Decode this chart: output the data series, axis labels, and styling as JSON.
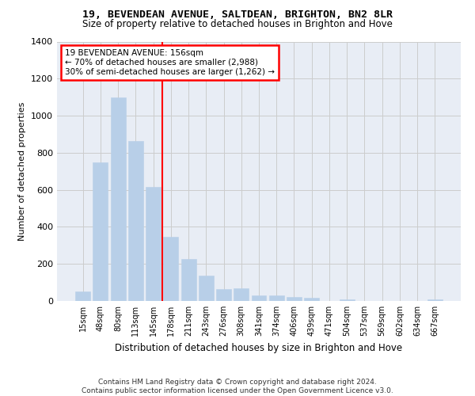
{
  "title": "19, BEVENDEAN AVENUE, SALTDEAN, BRIGHTON, BN2 8LR",
  "subtitle": "Size of property relative to detached houses in Brighton and Hove",
  "xlabel": "Distribution of detached houses by size in Brighton and Hove",
  "ylabel": "Number of detached properties",
  "footer_line1": "Contains HM Land Registry data © Crown copyright and database right 2024.",
  "footer_line2": "Contains public sector information licensed under the Open Government Licence v3.0.",
  "bar_labels": [
    "15sqm",
    "48sqm",
    "80sqm",
    "113sqm",
    "145sqm",
    "178sqm",
    "211sqm",
    "243sqm",
    "276sqm",
    "308sqm",
    "341sqm",
    "374sqm",
    "406sqm",
    "439sqm",
    "471sqm",
    "504sqm",
    "537sqm",
    "569sqm",
    "602sqm",
    "634sqm",
    "667sqm"
  ],
  "bar_values": [
    50,
    750,
    1100,
    865,
    615,
    345,
    225,
    135,
    65,
    70,
    30,
    30,
    20,
    15,
    0,
    10,
    0,
    0,
    0,
    0,
    10
  ],
  "bar_color": "#b8cfe8",
  "bar_edgecolor": "#b8cfe8",
  "grid_color": "#cccccc",
  "bg_color": "#e8edf5",
  "vline_x": 4.5,
  "vline_color": "red",
  "annotation_text_line1": "19 BEVENDEAN AVENUE: 156sqm",
  "annotation_text_line2": "← 70% of detached houses are smaller (2,988)",
  "annotation_text_line3": "30% of semi-detached houses are larger (1,262) →",
  "annotation_box_color": "red",
  "ylim": [
    0,
    1400
  ],
  "yticks": [
    0,
    200,
    400,
    600,
    800,
    1000,
    1200,
    1400
  ]
}
